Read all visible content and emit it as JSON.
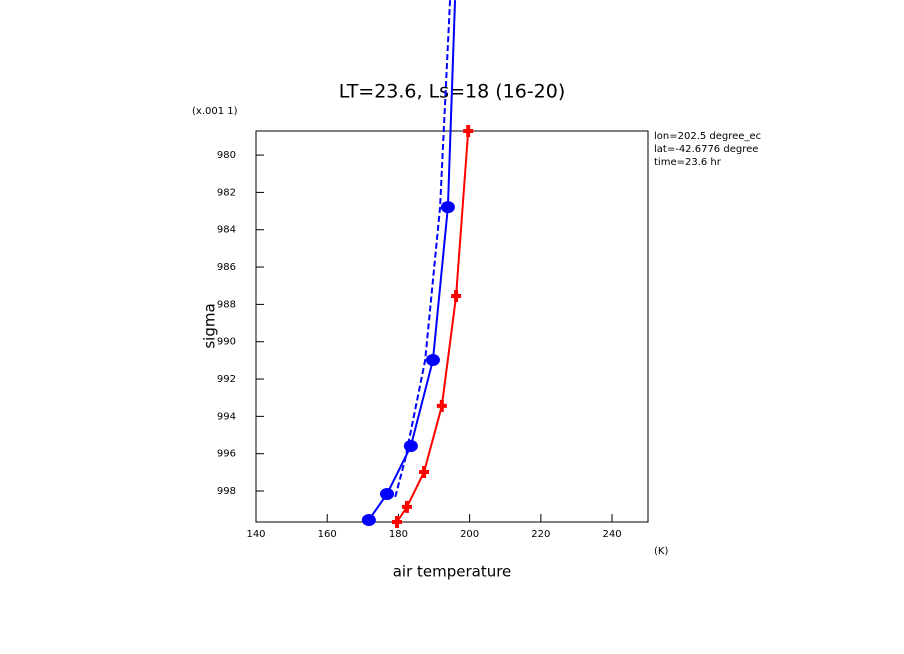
{
  "chart_data": {
    "type": "line",
    "title": "LT=23.6, Ls=18 (16-20)",
    "x_label": "air temperature",
    "y_label": "sigma",
    "x_unit": "(K)",
    "y_unit": "(x.001 1)",
    "annotations": [
      "lon=202.5 degree_ec",
      "lat=-42.6776 degree",
      "time=23.6 hr"
    ],
    "xlim": [
      140,
      250.1
    ],
    "ylim": [
      999.66,
      978.71
    ],
    "xticks": [
      140,
      160,
      180,
      200,
      220,
      240
    ],
    "yticks": [
      980,
      982,
      984,
      986,
      988,
      990,
      992,
      994,
      996,
      998
    ],
    "series": [
      {
        "color": "#ff0000",
        "dash": false,
        "marker": "cross",
        "x": [
          199.6,
          196.2,
          192.2,
          187.2,
          182.4,
          179.6
        ],
        "values": [
          978.71,
          987.55,
          993.44,
          996.98,
          998.85,
          999.66
        ]
      },
      {
        "color": "#0000ff",
        "dash": false,
        "marker": "circle",
        "x": [
          195.9,
          193.9,
          189.7,
          183.5,
          176.8,
          171.7
        ],
        "values": [
          971.7,
          982.79,
          990.98,
          995.59,
          998.16,
          999.55
        ]
      },
      {
        "color": "#0000ff",
        "dash": true,
        "marker": null,
        "x": [
          194.5,
          191.7,
          187.5,
          181.9,
          179.0
        ],
        "values": [
          971.7,
          982.8,
          991.0,
          996.3,
          998.4
        ]
      }
    ]
  }
}
